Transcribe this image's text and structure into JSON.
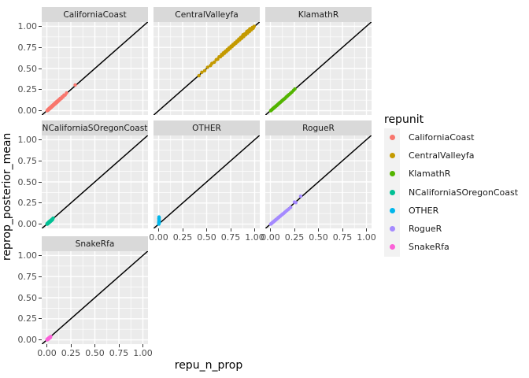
{
  "titles": {
    "x_axis": "repu_n_prop",
    "y_axis": "reprop_posterior_mean"
  },
  "legend": {
    "title": "repunit",
    "entries": [
      {
        "label": "CaliforniaCoast",
        "color": "#F8766D"
      },
      {
        "label": "CentralValleyfa",
        "color": "#C49A00"
      },
      {
        "label": "KlamathR",
        "color": "#53B400"
      },
      {
        "label": "NCaliforniaSOregonCoast",
        "color": "#00C094"
      },
      {
        "label": "OTHER",
        "color": "#00B6EB"
      },
      {
        "label": "RogueR",
        "color": "#A58AFF"
      },
      {
        "label": "SnakeRfa",
        "color": "#FB61D7"
      }
    ]
  },
  "axis": {
    "tick_labels": [
      "0.00",
      "0.25",
      "0.50",
      "0.75",
      "1.00"
    ],
    "tick_values": [
      0,
      0.25,
      0.5,
      0.75,
      1
    ],
    "minor_values": [
      0.125,
      0.375,
      0.625,
      0.875
    ],
    "xlim": [
      0,
      1
    ],
    "ylim": [
      0,
      1
    ]
  },
  "colors": {
    "panel_bg": "#EBEBEB",
    "strip_bg": "#D9D9D9",
    "grid": "#FFFFFF",
    "abline": "#000000",
    "axis_text": "#4D4D4D",
    "legend_key_bg": "#F2F2F2"
  },
  "chart_data": {
    "type": "scatter",
    "facet_variable": "repunit",
    "xlabel": "repu_n_prop",
    "ylabel": "reprop_posterior_mean",
    "abline": {
      "slope": 1,
      "intercept": 0
    },
    "grid": true,
    "legend_position": "right",
    "facets": [
      {
        "name": "CaliforniaCoast",
        "row": 0,
        "col": 0,
        "axis_y": true,
        "axis_x": false,
        "color": "#F8766D",
        "points": [
          [
            0.003,
            0.0
          ],
          [
            0.008,
            0.004
          ],
          [
            0.01,
            0.012
          ],
          [
            0.015,
            0.008
          ],
          [
            0.018,
            0.02
          ],
          [
            0.022,
            0.016
          ],
          [
            0.025,
            0.027
          ],
          [
            0.03,
            0.024
          ],
          [
            0.033,
            0.036
          ],
          [
            0.038,
            0.032
          ],
          [
            0.042,
            0.045
          ],
          [
            0.047,
            0.04
          ],
          [
            0.05,
            0.054
          ],
          [
            0.055,
            0.05
          ],
          [
            0.06,
            0.063
          ],
          [
            0.065,
            0.058
          ],
          [
            0.07,
            0.074
          ],
          [
            0.075,
            0.07
          ],
          [
            0.08,
            0.085
          ],
          [
            0.086,
            0.08
          ],
          [
            0.09,
            0.095
          ],
          [
            0.096,
            0.09
          ],
          [
            0.1,
            0.106
          ],
          [
            0.108,
            0.1
          ],
          [
            0.113,
            0.118
          ],
          [
            0.12,
            0.114
          ],
          [
            0.127,
            0.132
          ],
          [
            0.133,
            0.128
          ],
          [
            0.14,
            0.146
          ],
          [
            0.15,
            0.144
          ],
          [
            0.158,
            0.163
          ],
          [
            0.168,
            0.162
          ],
          [
            0.178,
            0.184
          ],
          [
            0.19,
            0.186
          ],
          [
            0.205,
            0.21
          ],
          [
            0.295,
            0.305
          ]
        ]
      },
      {
        "name": "CentralValleyfa",
        "row": 0,
        "col": 1,
        "axis_y": false,
        "axis_x": false,
        "color": "#C49A00",
        "points": [
          [
            0.42,
            0.415
          ],
          [
            0.45,
            0.455
          ],
          [
            0.48,
            0.475
          ],
          [
            0.51,
            0.515
          ],
          [
            0.54,
            0.535
          ],
          [
            0.555,
            0.56
          ],
          [
            0.58,
            0.575
          ],
          [
            0.6,
            0.605
          ],
          [
            0.615,
            0.61
          ],
          [
            0.63,
            0.638
          ],
          [
            0.645,
            0.64
          ],
          [
            0.655,
            0.665
          ],
          [
            0.665,
            0.66
          ],
          [
            0.675,
            0.685
          ],
          [
            0.685,
            0.68
          ],
          [
            0.695,
            0.705
          ],
          [
            0.705,
            0.7
          ],
          [
            0.715,
            0.725
          ],
          [
            0.725,
            0.72
          ],
          [
            0.735,
            0.745
          ],
          [
            0.745,
            0.74
          ],
          [
            0.755,
            0.765
          ],
          [
            0.765,
            0.76
          ],
          [
            0.775,
            0.785
          ],
          [
            0.785,
            0.78
          ],
          [
            0.795,
            0.805
          ],
          [
            0.805,
            0.8
          ],
          [
            0.815,
            0.825
          ],
          [
            0.825,
            0.82
          ],
          [
            0.835,
            0.848
          ],
          [
            0.845,
            0.84
          ],
          [
            0.855,
            0.868
          ],
          [
            0.865,
            0.858
          ],
          [
            0.875,
            0.888
          ],
          [
            0.885,
            0.878
          ],
          [
            0.895,
            0.908
          ],
          [
            0.905,
            0.898
          ],
          [
            0.915,
            0.928
          ],
          [
            0.925,
            0.918
          ],
          [
            0.935,
            0.948
          ],
          [
            0.945,
            0.938
          ],
          [
            0.955,
            0.968
          ],
          [
            0.965,
            0.958
          ],
          [
            0.975,
            0.985
          ],
          [
            0.985,
            0.978
          ],
          [
            0.995,
            1.0
          ],
          [
            0.88,
            0.9
          ],
          [
            0.92,
            0.94
          ],
          [
            0.95,
            0.97
          ]
        ]
      },
      {
        "name": "KlamathR",
        "row": 0,
        "col": 2,
        "axis_y": false,
        "axis_x": false,
        "color": "#53B400",
        "points": [
          [
            0.003,
            0.0
          ],
          [
            0.007,
            0.005
          ],
          [
            0.012,
            0.008
          ],
          [
            0.016,
            0.014
          ],
          [
            0.02,
            0.017
          ],
          [
            0.025,
            0.022
          ],
          [
            0.03,
            0.027
          ],
          [
            0.034,
            0.032
          ],
          [
            0.04,
            0.036
          ],
          [
            0.044,
            0.042
          ],
          [
            0.05,
            0.046
          ],
          [
            0.054,
            0.052
          ],
          [
            0.06,
            0.056
          ],
          [
            0.065,
            0.062
          ],
          [
            0.07,
            0.066
          ],
          [
            0.076,
            0.073
          ],
          [
            0.082,
            0.078
          ],
          [
            0.088,
            0.085
          ],
          [
            0.094,
            0.09
          ],
          [
            0.1,
            0.097
          ],
          [
            0.107,
            0.103
          ],
          [
            0.114,
            0.11
          ],
          [
            0.12,
            0.117
          ],
          [
            0.128,
            0.124
          ],
          [
            0.136,
            0.133
          ],
          [
            0.145,
            0.14
          ],
          [
            0.155,
            0.15
          ],
          [
            0.165,
            0.162
          ],
          [
            0.175,
            0.172
          ],
          [
            0.185,
            0.183
          ],
          [
            0.195,
            0.192
          ],
          [
            0.21,
            0.207
          ],
          [
            0.225,
            0.222
          ],
          [
            0.24,
            0.24
          ],
          [
            0.255,
            0.258
          ]
        ]
      },
      {
        "name": "NCaliforniaSOregonCoast",
        "row": 1,
        "col": 0,
        "axis_y": true,
        "axis_x": false,
        "color": "#00C094",
        "points": [
          [
            0.002,
            0.004
          ],
          [
            0.005,
            0.0
          ],
          [
            0.008,
            0.01
          ],
          [
            0.01,
            0.006
          ],
          [
            0.012,
            0.016
          ],
          [
            0.015,
            0.01
          ],
          [
            0.018,
            0.022
          ],
          [
            0.02,
            0.015
          ],
          [
            0.024,
            0.028
          ],
          [
            0.027,
            0.02
          ],
          [
            0.03,
            0.034
          ],
          [
            0.033,
            0.027
          ],
          [
            0.037,
            0.04
          ],
          [
            0.04,
            0.034
          ],
          [
            0.044,
            0.047
          ],
          [
            0.048,
            0.042
          ],
          [
            0.053,
            0.056
          ],
          [
            0.058,
            0.052
          ],
          [
            0.065,
            0.07
          ]
        ]
      },
      {
        "name": "OTHER",
        "row": 1,
        "col": 1,
        "axis_y": false,
        "axis_x": true,
        "color": "#00B6EB",
        "points": [
          [
            0.002,
            0.0
          ],
          [
            0.004,
            0.008
          ],
          [
            0.002,
            0.016
          ],
          [
            0.005,
            0.024
          ],
          [
            0.003,
            0.032
          ],
          [
            0.006,
            0.04
          ],
          [
            0.004,
            0.048
          ],
          [
            0.005,
            0.057
          ],
          [
            0.003,
            0.066
          ],
          [
            0.006,
            0.075
          ],
          [
            0.004,
            0.084
          ],
          [
            0.008,
            0.02
          ]
        ]
      },
      {
        "name": "RogueR",
        "row": 1,
        "col": 2,
        "axis_y": false,
        "axis_x": true,
        "color": "#A58AFF",
        "points": [
          [
            0.003,
            0.0
          ],
          [
            0.007,
            0.004
          ],
          [
            0.012,
            0.009
          ],
          [
            0.016,
            0.013
          ],
          [
            0.02,
            0.017
          ],
          [
            0.025,
            0.021
          ],
          [
            0.03,
            0.026
          ],
          [
            0.034,
            0.03
          ],
          [
            0.04,
            0.035
          ],
          [
            0.044,
            0.04
          ],
          [
            0.05,
            0.044
          ],
          [
            0.055,
            0.05
          ],
          [
            0.06,
            0.054
          ],
          [
            0.066,
            0.06
          ],
          [
            0.072,
            0.066
          ],
          [
            0.078,
            0.072
          ],
          [
            0.084,
            0.078
          ],
          [
            0.09,
            0.083
          ],
          [
            0.097,
            0.09
          ],
          [
            0.104,
            0.096
          ],
          [
            0.112,
            0.104
          ],
          [
            0.12,
            0.112
          ],
          [
            0.13,
            0.12
          ],
          [
            0.14,
            0.13
          ],
          [
            0.15,
            0.14
          ],
          [
            0.162,
            0.152
          ],
          [
            0.175,
            0.165
          ],
          [
            0.19,
            0.178
          ],
          [
            0.21,
            0.198
          ],
          [
            0.25,
            0.262
          ],
          [
            0.265,
            0.255
          ],
          [
            0.315,
            0.33
          ]
        ]
      },
      {
        "name": "SnakeRfa",
        "row": 2,
        "col": 0,
        "axis_y": true,
        "axis_x": true,
        "color": "#FB61D7",
        "points": [
          [
            0.002,
            0.004
          ],
          [
            0.004,
            0.0
          ],
          [
            0.007,
            0.01
          ],
          [
            0.01,
            0.005
          ],
          [
            0.012,
            0.015
          ],
          [
            0.015,
            0.01
          ],
          [
            0.018,
            0.02
          ],
          [
            0.02,
            0.014
          ],
          [
            0.024,
            0.026
          ],
          [
            0.028,
            0.02
          ],
          [
            0.032,
            0.033
          ],
          [
            0.036,
            0.028
          ],
          [
            0.04,
            0.04
          ]
        ]
      }
    ]
  }
}
